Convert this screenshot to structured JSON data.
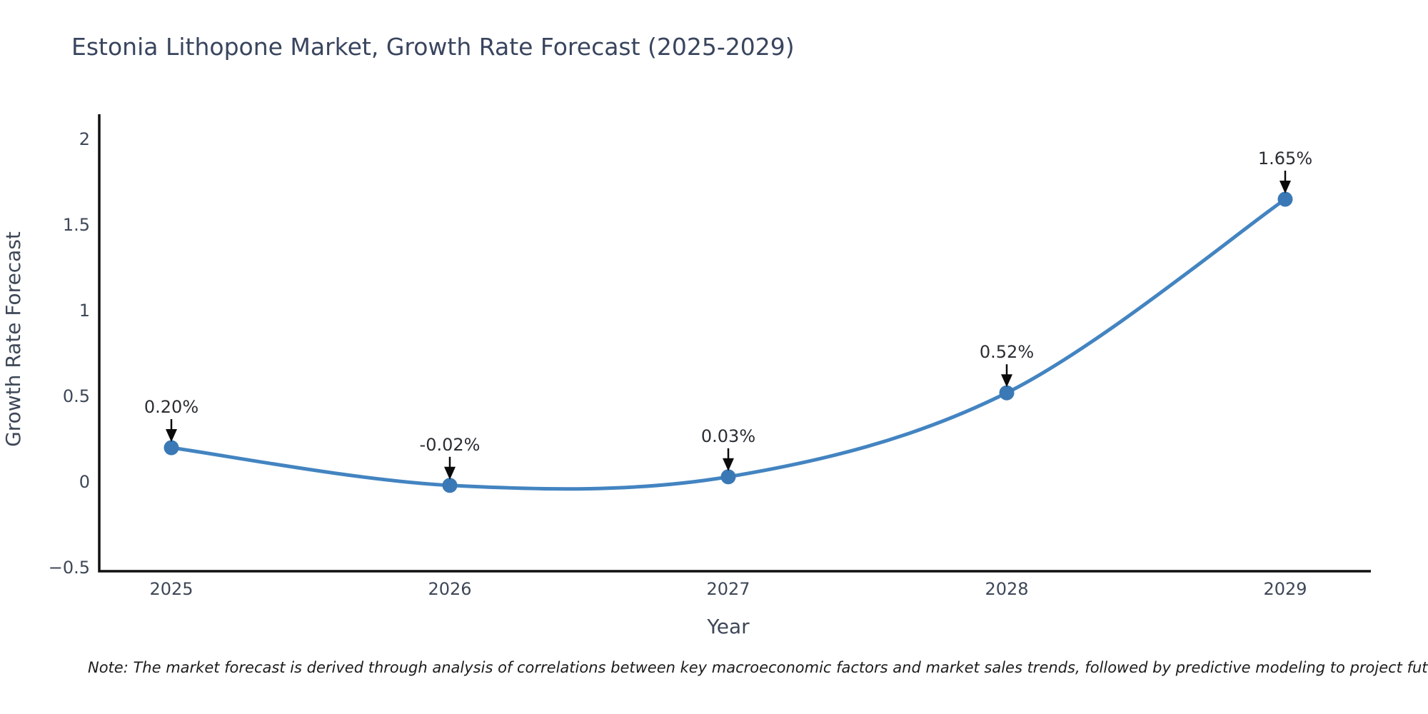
{
  "chart_data": {
    "type": "line",
    "title": "Estonia Lithopone Market, Growth Rate Forecast (2025-2029)",
    "xlabel": "Year",
    "ylabel": "Growth Rate Forecast",
    "categories": [
      "2025",
      "2026",
      "2027",
      "2028",
      "2029"
    ],
    "series": [
      {
        "name": "Growth Rate Forecast",
        "values": [
          0.2,
          -0.02,
          0.03,
          0.52,
          1.65
        ]
      }
    ],
    "data_labels": [
      "0.20%",
      "-0.02%",
      "0.03%",
      "0.52%",
      "1.65%"
    ],
    "ytick_values": [
      2,
      1.5,
      1,
      0.5,
      0,
      -0.5
    ],
    "ytick_labels": [
      "2",
      "1.5",
      "1",
      "0.5",
      "0",
      "−0.5"
    ],
    "ylim": [
      -0.52,
      2.15
    ],
    "grid": false,
    "legend": "none",
    "line_color": "#4384c1",
    "marker_color": "#3a79b5",
    "annotation_color": "#2a2e33",
    "arrow_color": "#0b0b0b",
    "axis_color": "#111111",
    "tick_color": "#3e4757",
    "title_color": "#39455e"
  },
  "footnote": {
    "text": "Note: The market forecast is derived through analysis of correlations between key macroeconomic factors and market sales trends, followed by predictive modeling to project future sa"
  }
}
